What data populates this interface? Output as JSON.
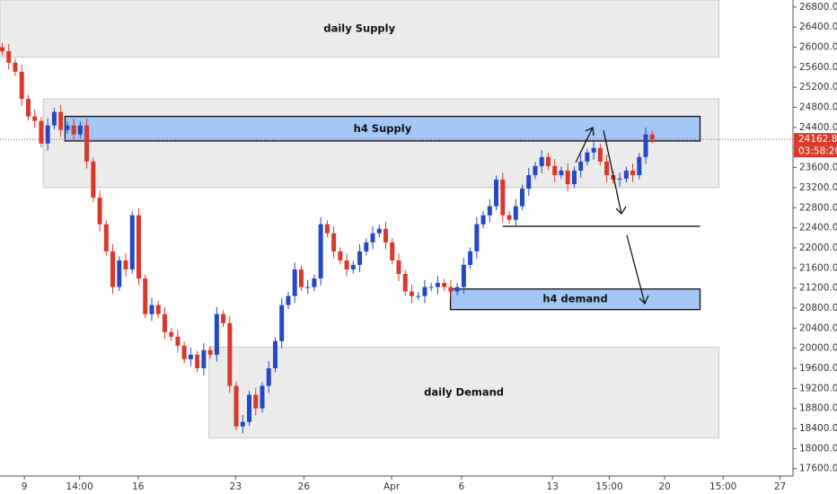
{
  "chart_data": {
    "type": "candlestick",
    "up_color": "#2448c6",
    "down_color": "#d8392b",
    "xlim": [
      0,
      244
    ],
    "xticks": [
      {
        "value": 7.5,
        "label": "9"
      },
      {
        "value": 24.5,
        "label": "14:00"
      },
      {
        "value": 42.5,
        "label": "16"
      },
      {
        "value": 72.5,
        "label": "23"
      },
      {
        "value": 93.5,
        "label": "26"
      },
      {
        "value": 120.5,
        "label": "Apr"
      },
      {
        "value": 142,
        "label": "6"
      },
      {
        "value": 170,
        "label": "13"
      },
      {
        "value": 187.5,
        "label": "15:00"
      },
      {
        "value": 204.5,
        "label": "20"
      },
      {
        "value": 222.5,
        "label": "15:00"
      },
      {
        "value": 240,
        "label": "27"
      }
    ],
    "ylim": [
      17470,
      26940
    ],
    "yticks": [
      {
        "value": 17600,
        "label": "17600.0"
      },
      {
        "value": 18000,
        "label": "18000.0"
      },
      {
        "value": 18400,
        "label": "18400.0"
      },
      {
        "value": 18800,
        "label": "18800.0"
      },
      {
        "value": 19200,
        "label": "19200.0"
      },
      {
        "value": 19600,
        "label": "19600.0"
      },
      {
        "value": 20000,
        "label": "20000.0"
      },
      {
        "value": 20400,
        "label": "20400.0"
      },
      {
        "value": 20800,
        "label": "20800.0"
      },
      {
        "value": 21200,
        "label": "21200.0"
      },
      {
        "value": 21600,
        "label": "21600.0"
      },
      {
        "value": 22000,
        "label": "22000.0"
      },
      {
        "value": 22400,
        "label": "22400.0"
      },
      {
        "value": 22800,
        "label": "22800.0"
      },
      {
        "value": 23200,
        "label": "23200.0"
      },
      {
        "value": 23600,
        "label": "23600.0"
      },
      {
        "value": 24000,
        "label": "24000.0"
      },
      {
        "value": 24400,
        "label": "24400.0"
      },
      {
        "value": 24800,
        "label": "24800.0"
      },
      {
        "value": 25200,
        "label": "25200.0"
      },
      {
        "value": 25600,
        "label": "25600.0"
      },
      {
        "value": 26000,
        "label": "26000.0"
      },
      {
        "value": 26400,
        "label": "26400.0"
      },
      {
        "value": 26800,
        "label": "26800.0"
      }
    ],
    "zones": [
      {
        "label": "daily Supply",
        "low": 25800,
        "high": 26940,
        "x0": 0,
        "x1": 221.2,
        "fill": "#ebebeb",
        "stroke": "#c8c8c8"
      },
      {
        "low": 23200,
        "high": 24970,
        "x0": 13.3,
        "x1": 221.2,
        "fill": "#ebebeb",
        "stroke": "#c8c8c8"
      },
      {
        "label": "daily Demand",
        "low": 18210,
        "high": 20020,
        "x0": 64.3,
        "x1": 221.2,
        "fill": "#ebebeb",
        "stroke": "#c8c8c8"
      },
      {
        "label": "h4 Supply",
        "low": 24130,
        "high": 24620,
        "x0": 20,
        "x1": 215.4,
        "fill": "#a3c8f7",
        "stroke": "#111111"
      },
      {
        "label": "h4 demand",
        "low": 20770,
        "high": 21180,
        "x0": 138.6,
        "x1": 215.4,
        "fill": "#a3c8f7",
        "stroke": "#111111"
      }
    ],
    "level": {
      "price": 22430,
      "x0": 154.7,
      "x1": 215.4
    },
    "last_price": 24162.8,
    "countdown": "03:58:20",
    "x": [
      0,
      2,
      4,
      6,
      8,
      10,
      12,
      14,
      16,
      18,
      20,
      22,
      24,
      26,
      28,
      30,
      32,
      34,
      36,
      38,
      40,
      42,
      44,
      46,
      48,
      50,
      52,
      54,
      56,
      58,
      60,
      62,
      64,
      66,
      68,
      70,
      72,
      74,
      76,
      78,
      80,
      82,
      84,
      86,
      88,
      90,
      92,
      94,
      96,
      98,
      100,
      102,
      104,
      106,
      108,
      110,
      112,
      114,
      116,
      118,
      120,
      122,
      124,
      126,
      128,
      130,
      132,
      134,
      136,
      138,
      140,
      142,
      144,
      146,
      148,
      150,
      152,
      154,
      156,
      158,
      160,
      162,
      164,
      166,
      168,
      170,
      172,
      174,
      176,
      178,
      180,
      182,
      184,
      186,
      188,
      190,
      192,
      194,
      196,
      198,
      200
    ],
    "ohlc": [
      [
        26000,
        26080,
        25840,
        25920
      ],
      [
        25920,
        26060,
        25550,
        25690
      ],
      [
        25690,
        25770,
        25430,
        25510
      ],
      [
        25510,
        25650,
        24830,
        24970
      ],
      [
        24970,
        25050,
        24540,
        24620
      ],
      [
        24620,
        24760,
        24390,
        24530
      ],
      [
        24530,
        24610,
        24000,
        24080
      ],
      [
        24080,
        24580,
        23940,
        24440
      ],
      [
        24440,
        24790,
        24360,
        24710
      ],
      [
        24710,
        24850,
        24210,
        24350
      ],
      [
        24350,
        24520,
        24270,
        24440
      ],
      [
        24440,
        24580,
        24120,
        24260
      ],
      [
        24260,
        24520,
        24180,
        24440
      ],
      [
        24440,
        24580,
        23580,
        23720
      ],
      [
        23720,
        23800,
        22920,
        23000
      ],
      [
        23000,
        23140,
        22330,
        22470
      ],
      [
        22470,
        22550,
        21850,
        21930
      ],
      [
        21930,
        22070,
        21080,
        21220
      ],
      [
        21220,
        21830,
        21140,
        21750
      ],
      [
        21750,
        21890,
        21430,
        21570
      ],
      [
        21570,
        22730,
        21490,
        22650
      ],
      [
        22650,
        22790,
        21250,
        21390
      ],
      [
        21390,
        21470,
        20600,
        20680
      ],
      [
        20680,
        21000,
        20540,
        20860
      ],
      [
        20860,
        20940,
        20600,
        20680
      ],
      [
        20680,
        20820,
        20180,
        20320
      ],
      [
        20320,
        20400,
        20150,
        20230
      ],
      [
        20230,
        20370,
        19910,
        20050
      ],
      [
        20050,
        20130,
        19700,
        19780
      ],
      [
        19780,
        20010,
        19640,
        19870
      ],
      [
        19870,
        19950,
        19520,
        19600
      ],
      [
        19600,
        20100,
        19460,
        19960
      ],
      [
        19960,
        20040,
        19790,
        19870
      ],
      [
        19870,
        20820,
        19730,
        20680
      ],
      [
        20680,
        20760,
        20420,
        20500
      ],
      [
        20500,
        20640,
        19110,
        19250
      ],
      [
        19250,
        19330,
        18360,
        18440
      ],
      [
        18440,
        18670,
        18300,
        18530
      ],
      [
        18530,
        19150,
        18450,
        19070
      ],
      [
        19070,
        19210,
        18660,
        18800
      ],
      [
        18800,
        19330,
        18720,
        19250
      ],
      [
        19250,
        19740,
        19110,
        19600
      ],
      [
        19600,
        20220,
        19520,
        20140
      ],
      [
        20140,
        21000,
        20000,
        20860
      ],
      [
        20860,
        21120,
        20780,
        21040
      ],
      [
        21040,
        21710,
        20900,
        21570
      ],
      [
        21570,
        21650,
        21140,
        21220
      ],
      [
        21220,
        21360,
        21080,
        21220
      ],
      [
        21220,
        21470,
        21140,
        21390
      ],
      [
        21390,
        22610,
        21250,
        22470
      ],
      [
        22470,
        22550,
        22210,
        22290
      ],
      [
        22290,
        22430,
        21790,
        21930
      ],
      [
        21930,
        22010,
        21670,
        21750
      ],
      [
        21750,
        21890,
        21430,
        21570
      ],
      [
        21570,
        21740,
        21490,
        21660
      ],
      [
        21660,
        22070,
        21520,
        21930
      ],
      [
        21930,
        22190,
        21850,
        22110
      ],
      [
        22110,
        22430,
        21970,
        22290
      ],
      [
        22290,
        22460,
        22210,
        22380
      ],
      [
        22380,
        22520,
        21970,
        22110
      ],
      [
        22110,
        22190,
        21670,
        21750
      ],
      [
        21750,
        21890,
        21340,
        21480
      ],
      [
        21480,
        21560,
        21050,
        21130
      ],
      [
        21130,
        21270,
        20900,
        21040
      ],
      [
        21040,
        21120,
        20960,
        21040
      ],
      [
        21040,
        21360,
        20900,
        21220
      ],
      [
        21220,
        21300,
        21140,
        21220
      ],
      [
        21220,
        21440,
        21080,
        21300
      ],
      [
        21300,
        21380,
        21140,
        21220
      ],
      [
        21220,
        21360,
        20990,
        21130
      ],
      [
        21130,
        21300,
        21050,
        21220
      ],
      [
        21220,
        21800,
        21080,
        21660
      ],
      [
        21660,
        22010,
        21580,
        21930
      ],
      [
        21930,
        22610,
        21790,
        22470
      ],
      [
        22470,
        22730,
        22390,
        22650
      ],
      [
        22650,
        22970,
        22510,
        22830
      ],
      [
        22830,
        23440,
        22750,
        23360
      ],
      [
        23360,
        23500,
        22510,
        22650
      ],
      [
        22650,
        22730,
        22480,
        22560
      ],
      [
        22560,
        22970,
        22420,
        22830
      ],
      [
        22830,
        23260,
        22750,
        23180
      ],
      [
        23180,
        23590,
        23040,
        23450
      ],
      [
        23450,
        23710,
        23370,
        23630
      ],
      [
        23630,
        23950,
        23490,
        23810
      ],
      [
        23810,
        23890,
        23550,
        23630
      ],
      [
        23630,
        23770,
        23310,
        23450
      ],
      [
        23450,
        23620,
        23370,
        23540
      ],
      [
        23540,
        23680,
        23130,
        23270
      ],
      [
        23270,
        23620,
        23190,
        23540
      ],
      [
        23540,
        23860,
        23400,
        23720
      ],
      [
        23720,
        23980,
        23640,
        23900
      ],
      [
        23900,
        24130,
        23760,
        23990
      ],
      [
        23990,
        24070,
        23640,
        23720
      ],
      [
        23720,
        23860,
        23310,
        23450
      ],
      [
        23450,
        23530,
        23280,
        23360
      ],
      [
        23360,
        23500,
        23220,
        23380
      ],
      [
        23380,
        23620,
        23300,
        23540
      ],
      [
        23540,
        23680,
        23310,
        23450
      ],
      [
        23450,
        23890,
        23370,
        23810
      ],
      [
        23810,
        24400,
        23670,
        24260
      ],
      [
        24260,
        24340,
        24080,
        24162.8
      ]
    ]
  }
}
